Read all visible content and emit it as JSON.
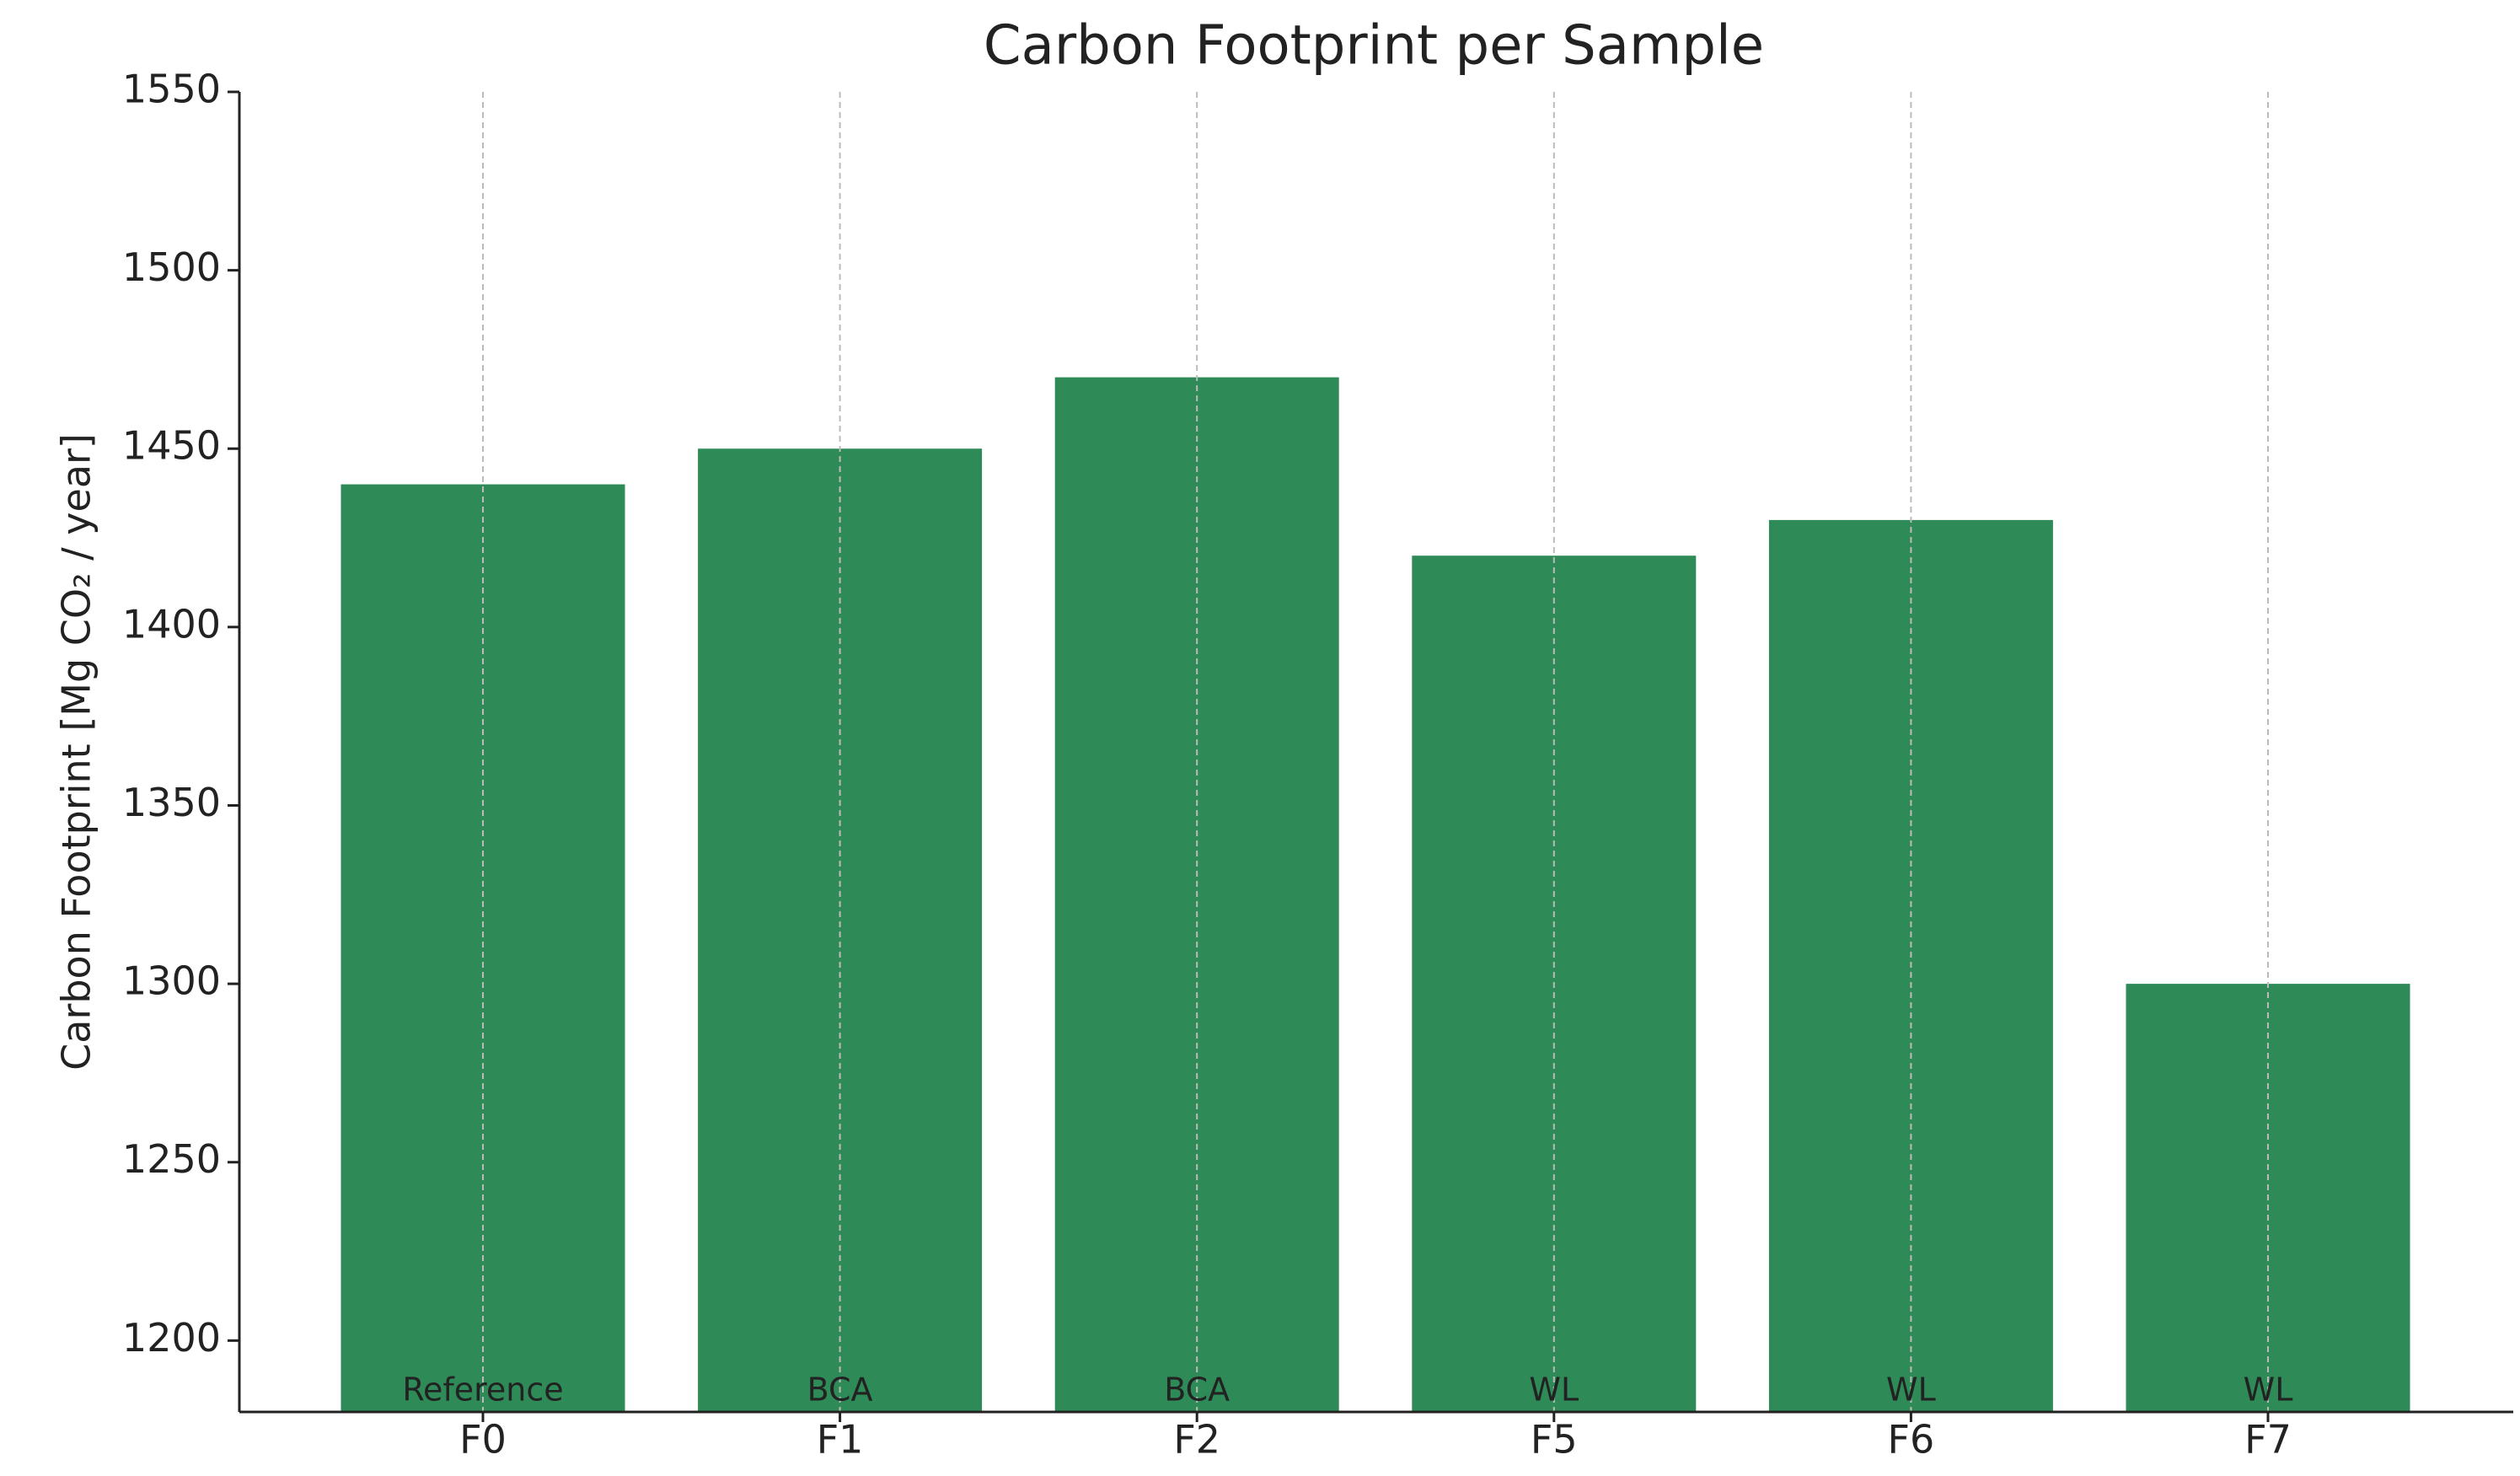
{
  "chart_data": {
    "type": "bar",
    "title": "Carbon Footprint per Sample",
    "y_label": "Carbon Footprint [Mg CO₂ / year]",
    "categories": [
      "F0",
      "F1",
      "F2",
      "F5",
      "F6",
      "F7"
    ],
    "values": [
      1440,
      1450,
      1470,
      1420,
      1430,
      1300
    ],
    "annotations": [
      "Reference",
      "BCA",
      "BCA",
      "WL",
      "WL",
      "WL"
    ],
    "color": "#2e8b57",
    "ylim": [
      1180,
      1550
    ],
    "yticks": [
      1200,
      1250,
      1300,
      1350,
      1400,
      1450,
      1500,
      1550
    ],
    "grid": "x"
  }
}
